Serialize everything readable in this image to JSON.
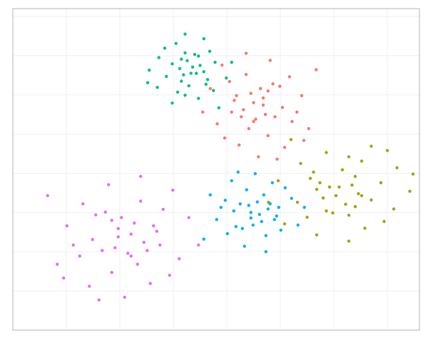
{
  "chart_data": {
    "type": "scatter",
    "xlim": [
      0,
      76
    ],
    "ylim": [
      0,
      82
    ],
    "xticks": [
      10,
      20,
      30,
      40,
      50,
      60,
      70
    ],
    "yticks": [
      10,
      20,
      30,
      40,
      50,
      60,
      70,
      80
    ],
    "grid": true,
    "series": [
      {
        "color": "#F8766D",
        "x": [
          45.4,
          41.4,
          49.9,
          53.1,
          43.6,
          47.7,
          38.2,
          46.8,
          42.3,
          51.7,
          44.5,
          49.0,
          36.9,
          55.3,
          43.1,
          48.1,
          40.5,
          50.8,
          46.3,
          44.1,
          54.0,
          39.6,
          47.2,
          45.0,
          50.4,
          41.8,
          48.6,
          42.7,
          52.2,
          45.9,
          35.5,
          56.7,
          43.6,
          49.4,
          40.9,
          46.8,
          45.0,
          47.7,
          39.1,
          54.4
        ],
        "values": [
          53.8,
          58.6,
          62.2,
          55.6,
          65.2,
          49.6,
          52.6,
          57.4,
          47.2,
          64.6,
          60.4,
          54.4,
          61.6,
          51.4,
          56.2,
          68.8,
          63.4,
          46.6,
          61.6,
          51.4,
          59.8,
          49.0,
          55.0,
          58.0,
          56.8,
          59.8,
          62.8,
          54.4,
          53.2,
          44.2,
          55.6,
          66.4,
          70.6,
          43.6,
          55.6,
          59.2,
          53.2,
          61.0,
          67.6,
          48.4
        ]
      },
      {
        "color": "#A3A500",
        "x": [
          64.6,
          59.8,
          56.2,
          62.8,
          53.2,
          68.8,
          65.8,
          61.0,
          71.2,
          53.8,
          58.0,
          64.0,
          56.8,
          67.0,
          62.2,
          49.6,
          55.0,
          71.8,
          56.8,
          67.0,
          58.6,
          69.4,
          63.4,
          60.4,
          61.6,
          58.6,
          55.6,
          64.0,
          65.2,
          74.2,
          62.8,
          52.0,
          47.8,
          74.8,
          62.8,
          59.2,
          65.2,
          57.4,
          50.8,
          70.0
        ],
        "values": [
          34.8,
          29.9,
          40.3,
          44.2,
          32.6,
          37.6,
          26.0,
          36.5,
          30.9,
          42.5,
          33.7,
          39.2,
          24.3,
          46.9,
          32.1,
          38.1,
          28.8,
          41.4,
          35.9,
          33.2,
          45.3,
          27.7,
          37.0,
          34.3,
          40.9,
          30.4,
          38.7,
          31.5,
          43.1,
          35.4,
          22.7,
          48.6,
          32.6,
          39.8,
          29.3,
          36.5,
          34.3,
          37.6,
          27.1,
          45.8
        ]
      },
      {
        "color": "#00BF7D",
        "x": [
          31.2,
          34.0,
          36.1,
          32.2,
          37.8,
          28.7,
          30.5,
          33.3,
          27.3,
          37.5,
          35.0,
          31.5,
          35.7,
          29.8,
          32.6,
          39.9,
          36.8,
          27.0,
          35.7,
          29.8,
          34.7,
          28.4,
          31.9,
          33.6,
          32.9,
          34.7,
          36.4,
          31.5,
          30.8,
          25.5,
          32.2,
          38.5,
          40.9,
          25.2,
          32.2,
          34.3
        ],
        "values": [
          66.7,
          70.3,
          62.7,
          59.9,
          68.3,
          64.7,
          73.1,
          65.5,
          69.5,
          61.1,
          67.5,
          63.5,
          74.3,
          57.9,
          68.7,
          64.3,
          71.1,
          61.9,
          65.9,
          67.9,
          59.1,
          71.9,
          65.1,
          67.1,
          62.3,
          69.9,
          63.9,
          69.1,
          60.7,
          66.3,
          75.5,
          56.7,
          68.3,
          63.1,
          70.7,
          65.5
        ]
      },
      {
        "color": "#00B0F6",
        "x": [
          45.7,
          49.3,
          41.7,
          38.9,
          47.3,
          43.7,
          52.1,
          44.5,
          48.5,
          40.1,
          46.5,
          42.5,
          53.3,
          36.9,
          47.7,
          43.3,
          50.1,
          40.9,
          44.9,
          46.9,
          38.1,
          50.9,
          44.1,
          46.1,
          41.3,
          48.9,
          42.9,
          48.1,
          39.7,
          45.3,
          54.5,
          35.7,
          47.3,
          42.1,
          49.7,
          44.5
        ],
        "values": [
          32.7,
          29.1,
          26.4,
          31.3,
          24.1,
          35.8,
          33.6,
          30.0,
          37.6,
          24.6,
          27.7,
          32.2,
          26.8,
          34.5,
          30.9,
          21.4,
          25.5,
          38.1,
          26.8,
          34.5,
          28.2,
          36.3,
          31.8,
          29.5,
          30.4,
          28.2,
          25.9,
          32.2,
          33.1,
          39.9,
          31.3,
          23.2,
          20.0,
          40.3,
          31.3,
          28.6
        ]
      },
      {
        "color": "#E76BF3",
        "x": [
          21.5,
          26.9,
          15.5,
          11.3,
          23.9,
          18.5,
          31.1,
          19.7,
          25.7,
          13.1,
          22.7,
          16.7,
          32.9,
          8.3,
          24.5,
          17.9,
          28.1,
          14.3,
          20.3,
          23.3,
          10.1,
          29.3,
          19.1,
          22.1,
          14.9,
          26.3,
          17.3,
          25.1,
          12.5,
          20.9,
          34.7,
          6.5,
          23.9,
          16.1,
          27.5,
          19.7,
          22.1,
          18.5,
          29.9,
          9.5
        ],
        "values": [
          19.6,
          25.2,
          29.4,
          21.7,
          32.9,
          14.7,
          18.2,
          23.8,
          11.9,
          32.2,
          27.3,
          20.3,
          28.7,
          16.8,
          22.4,
          37.1,
          30.8,
          11.2,
          28.7,
          16.8,
          26.6,
          14.0,
          21.0,
          24.5,
          23.1,
          26.6,
          30.1,
          20.3,
          18.9,
          8.4,
          21.7,
          34.3,
          39.2,
          7.7,
          21.7,
          25.9,
          18.9,
          28.0,
          35.7,
          13.3
        ]
      }
    ]
  }
}
